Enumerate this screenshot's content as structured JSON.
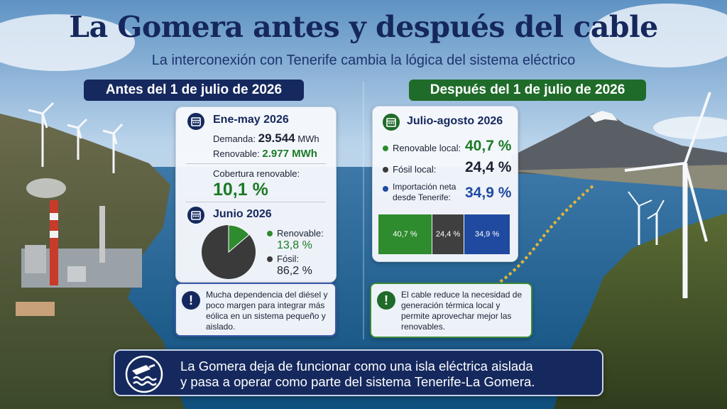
{
  "header": {
    "title": "La Gomera antes y después del cable",
    "subtitle": "La interconexión con Tenerife cambia la lógica del sistema eléctrico"
  },
  "before": {
    "section_label": "Antes del 1 de julio de 2026",
    "period1": "Ene-may 2026",
    "demand_label": "Demanda:",
    "demand_value": "29.544",
    "demand_unit": "MWh",
    "renewable_label": "Renovable:",
    "renewable_value": "2.977 MWh",
    "coverage_label": "Cobertura renovable:",
    "coverage_value": "10,1 %",
    "period2": "Junio 2026",
    "pie_renewable_label": "Renovable:",
    "pie_renewable_value": "13,8 %",
    "pie_fossil_label": "Fósil:",
    "pie_fossil_value": "86,2 %",
    "pie_renewable_share": 13.8,
    "note": "Mucha dependencia del diésel y poco margen para integrar más eólica en un sistema pequeño y aislado.",
    "note_icon": "!"
  },
  "after": {
    "section_label": "Después del 1 de julio de 2026",
    "period": "Julio-agosto 2026",
    "local_renewable_label": "Renovable local:",
    "local_renewable_value": "40,7 %",
    "local_fossil_label": "Fósil local:",
    "local_fossil_value": "24,4 %",
    "import_label_line1": "Importación neta",
    "import_label_line2": "desde Tenerife:",
    "import_value": "34,9 %",
    "bar": [
      {
        "label": "40,7 %",
        "share": 40.7,
        "color": "#2e8b2e"
      },
      {
        "label": "24,4 %",
        "share": 24.4,
        "color": "#3f3f3f"
      },
      {
        "label": "34,9 %",
        "share": 34.9,
        "color": "#1f4aa0"
      }
    ],
    "note": "El cable reduce la necesidad de generación térmica local y permite aprovechar mejor las renovables.",
    "note_icon": "!"
  },
  "banner": {
    "line1": "La Gomera deja de funcionar como una isla eléctrica aislada",
    "line2": "y pasa a operar como parte del sistema Tenerife-La Gomera."
  },
  "colors": {
    "navy": "#15295e",
    "green": "#1f6b2a",
    "renewable_green": "#2e8b2e",
    "fossil_gray": "#3f3f3f",
    "import_blue": "#1f4aa0"
  },
  "icons": [
    "calendar-icon",
    "exclamation-icon",
    "subsea-cable-icon"
  ]
}
